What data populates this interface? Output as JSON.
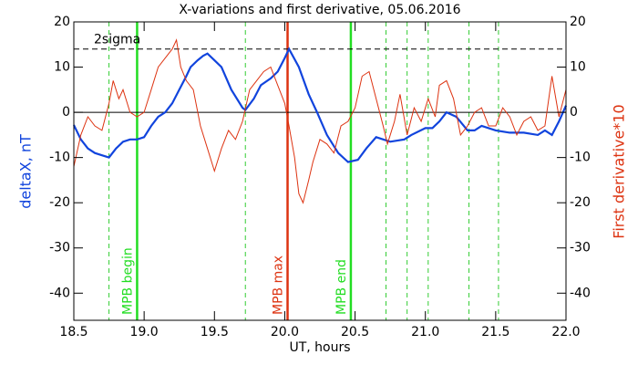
{
  "chart_data": {
    "type": "line",
    "title": "X-variations and first derivative, 05.06.2016",
    "xlabel": "UT, hours",
    "ylabel": "deltaX, nT",
    "y2label": "First derivative*10",
    "xlim": [
      18.5,
      22.0
    ],
    "xticks": [
      18.5,
      {
        "value": 19,
        "label": "19.0"
      },
      19.5,
      {
        "value": 20,
        "label": "20.0"
      },
      20.5,
      {
        "value": 21,
        "label": "21.0"
      },
      21.5,
      {
        "value": 22,
        "label": "22.0"
      }
    ],
    "ylim": [
      -46,
      20
    ],
    "yticks": [
      -40,
      -30,
      -20,
      -10,
      0,
      10,
      20
    ],
    "y2lim": [
      -46,
      20
    ],
    "y2ticks": [
      -40,
      -30,
      -20,
      -10,
      0,
      10,
      20
    ],
    "ylabel_color": "#1144dd",
    "y2label_color": "#dd3311",
    "series": [
      {
        "color": "#1144dd",
        "width": 2.2,
        "x": [
          18.5,
          18.55,
          18.6,
          18.65,
          18.7,
          18.75,
          18.8,
          18.85,
          18.9,
          18.95,
          19.0,
          19.05,
          19.1,
          19.15,
          19.2,
          19.25,
          19.3,
          19.33,
          19.38,
          19.42,
          19.45,
          19.5,
          19.55,
          19.62,
          19.7,
          19.72,
          19.78,
          19.83,
          19.9,
          19.95,
          20.0,
          20.03,
          20.1,
          20.17,
          20.23,
          20.3,
          20.38,
          20.45,
          20.52,
          20.58,
          20.65,
          20.75,
          20.85,
          20.9,
          21.0,
          21.05,
          21.1,
          21.15,
          21.22,
          21.3,
          21.35,
          21.4,
          21.5,
          21.6,
          21.7,
          21.8,
          21.85,
          21.9,
          21.95,
          22.0
        ],
        "values": [
          -2.8,
          -6,
          -8,
          -9,
          -9.5,
          -10,
          -8,
          -6.5,
          -6,
          -6,
          -5.5,
          -3,
          -1,
          0,
          2,
          5,
          8,
          10,
          11.5,
          12.5,
          13,
          11.5,
          10,
          5,
          1,
          0.5,
          3,
          6,
          7.5,
          9,
          12,
          14,
          10,
          4,
          0,
          -5,
          -9,
          -11,
          -10.5,
          -8,
          -5.5,
          -6.5,
          -6,
          -5,
          -3.5,
          -3.5,
          -2,
          0,
          -1,
          -4,
          -4,
          -3,
          -4,
          -4.5,
          -4.5,
          -5,
          -4,
          -5,
          -2,
          1.5
        ]
      },
      {
        "color": "#dd3311",
        "width": 1,
        "axis": "y2",
        "x": [
          18.5,
          18.55,
          18.6,
          18.65,
          18.7,
          18.75,
          18.78,
          18.82,
          18.85,
          18.9,
          18.95,
          19.0,
          19.05,
          19.1,
          19.15,
          19.2,
          19.23,
          19.26,
          19.3,
          19.35,
          19.4,
          19.45,
          19.5,
          19.55,
          19.6,
          19.65,
          19.7,
          19.75,
          19.8,
          19.85,
          19.9,
          19.95,
          20.0,
          20.03,
          20.07,
          20.1,
          20.13,
          20.17,
          20.2,
          20.25,
          20.3,
          20.35,
          20.4,
          20.45,
          20.5,
          20.55,
          20.6,
          20.65,
          20.7,
          20.73,
          20.78,
          20.82,
          20.87,
          20.92,
          20.97,
          21.02,
          21.07,
          21.1,
          21.15,
          21.2,
          21.25,
          21.3,
          21.35,
          21.4,
          21.45,
          21.5,
          21.55,
          21.6,
          21.65,
          21.7,
          21.75,
          21.8,
          21.85,
          21.9,
          21.95,
          22.0
        ],
        "values": [
          -12,
          -5,
          -1,
          -3,
          -4,
          2,
          7,
          3,
          5,
          0,
          -1,
          0,
          5,
          10,
          12,
          14,
          16,
          10,
          7,
          5,
          -3,
          -8,
          -13,
          -8,
          -4,
          -6,
          -2,
          5,
          7,
          9,
          10,
          6,
          2,
          -3,
          -10,
          -18,
          -20,
          -15,
          -11,
          -6,
          -7,
          -9,
          -3,
          -2,
          1,
          8,
          9,
          3,
          -3,
          -7,
          -2,
          4,
          -5,
          1,
          -2,
          3,
          -1,
          6,
          7,
          3,
          -5,
          -3,
          0,
          1,
          -3,
          -3,
          1,
          -1,
          -5,
          -2,
          -1,
          -4,
          -3,
          8,
          -1,
          5
        ]
      }
    ],
    "hlines": [
      {
        "y": 14,
        "style": "dashed",
        "color": "#000000",
        "label": "2sigma"
      },
      {
        "y": 0,
        "style": "solid",
        "color": "#000000"
      }
    ],
    "vlines": [
      {
        "x": 18.75,
        "style": "dashed",
        "color": "#33cc33"
      },
      {
        "x": 18.95,
        "style": "solid",
        "color": "#22dd22",
        "label": "MPB begin"
      },
      {
        "x": 19.72,
        "style": "dashed",
        "color": "#33cc33"
      },
      {
        "x": 20.02,
        "style": "solid",
        "color": "#dd3311",
        "label": "MPB max"
      },
      {
        "x": 20.47,
        "style": "solid",
        "color": "#22dd22",
        "label": "MPB end"
      },
      {
        "x": 20.72,
        "style": "dashed",
        "color": "#33cc33"
      },
      {
        "x": 20.87,
        "style": "dashed",
        "color": "#33cc33"
      },
      {
        "x": 21.02,
        "style": "dashed",
        "color": "#33cc33"
      },
      {
        "x": 21.31,
        "style": "dashed",
        "color": "#33cc33"
      },
      {
        "x": 21.52,
        "style": "dashed",
        "color": "#33cc33"
      }
    ]
  }
}
